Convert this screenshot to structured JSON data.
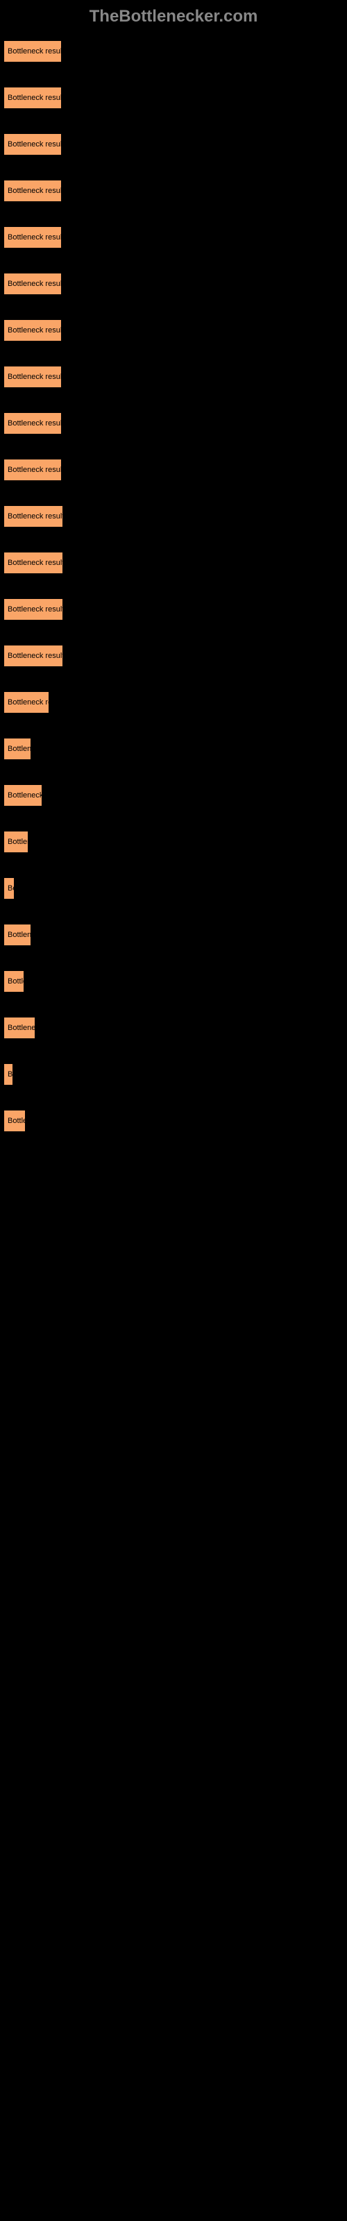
{
  "header": {
    "logo_text": "TheBottlenecker.com",
    "logo_color": "#888888"
  },
  "bars": [
    {
      "label": "Bottleneck result",
      "width": 84
    },
    {
      "label": "Bottleneck result",
      "width": 84
    },
    {
      "label": "Bottleneck result",
      "width": 84
    },
    {
      "label": "Bottleneck result",
      "width": 84
    },
    {
      "label": "Bottleneck result",
      "width": 84
    },
    {
      "label": "Bottleneck result",
      "width": 84
    },
    {
      "label": "Bottleneck result",
      "width": 84
    },
    {
      "label": "Bottleneck result",
      "width": 84
    },
    {
      "label": "Bottleneck result",
      "width": 84
    },
    {
      "label": "Bottleneck result",
      "width": 84
    },
    {
      "label": "Bottleneck result",
      "width": 86
    },
    {
      "label": "Bottleneck result",
      "width": 86
    },
    {
      "label": "Bottleneck result",
      "width": 86
    },
    {
      "label": "Bottleneck result",
      "width": 86
    },
    {
      "label": "Bottleneck re",
      "width": 66
    },
    {
      "label": "Bottlene",
      "width": 40
    },
    {
      "label": "Bottleneck r",
      "width": 56
    },
    {
      "label": "Bottlen",
      "width": 36
    },
    {
      "label": "Bo",
      "width": 16
    },
    {
      "label": "Bottlen",
      "width": 40
    },
    {
      "label": "Bottle",
      "width": 30
    },
    {
      "label": "Bottlenec",
      "width": 46
    },
    {
      "label": "Bo",
      "width": 14
    },
    {
      "label": "Bottle",
      "width": 32
    }
  ],
  "colors": {
    "background": "#000000",
    "bar_fill": "#faa567",
    "bar_text": "#000000"
  }
}
